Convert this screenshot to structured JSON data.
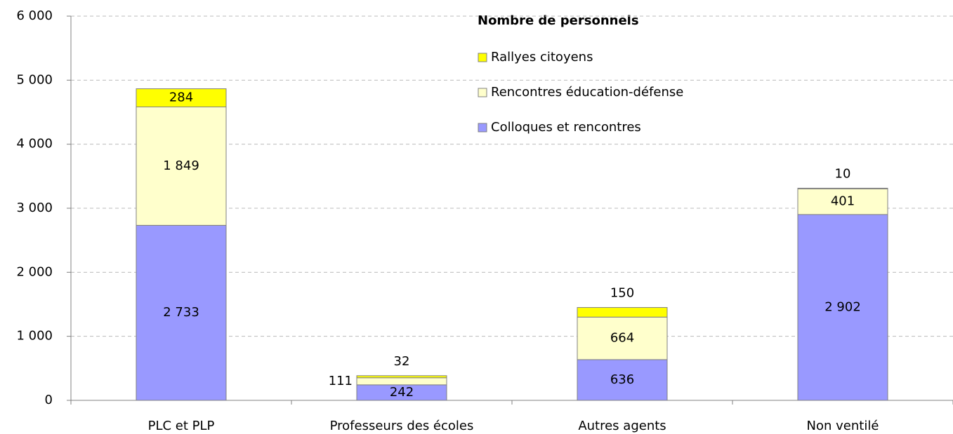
{
  "chart_data": {
    "type": "stacked_bar",
    "legend_title": "Nombre de personnels",
    "categories": [
      "PLC et PLP",
      "Professeurs des écoles",
      "Autres agents",
      "Non ventilé"
    ],
    "series": [
      {
        "name": "Colloques et rencontres",
        "color": "#9999ff",
        "values": [
          2733,
          242,
          636,
          2902
        ],
        "value_labels": [
          "2 733",
          "242",
          "636",
          "2 902"
        ]
      },
      {
        "name": "Rencontres éducation-défense",
        "color": "#ffffcc",
        "values": [
          1849,
          111,
          664,
          401
        ],
        "value_labels": [
          "1 849",
          "111",
          "664",
          "401"
        ]
      },
      {
        "name": "Rallyes citoyens",
        "color": "#ffff00",
        "values": [
          284,
          32,
          150,
          10
        ],
        "value_labels": [
          "284",
          "32",
          "150",
          "10"
        ]
      }
    ],
    "ylim": [
      0,
      6000
    ],
    "yticks": [
      0,
      {
        "value": 1000,
        "label": "1 000"
      },
      {
        "value": 2000,
        "label": "2 000"
      },
      {
        "value": 3000,
        "label": "3 000"
      },
      {
        "value": 4000,
        "label": "4 000"
      },
      {
        "value": 5000,
        "label": "5 000"
      },
      {
        "value": 6000,
        "label": "6 000"
      }
    ],
    "grid": true
  }
}
